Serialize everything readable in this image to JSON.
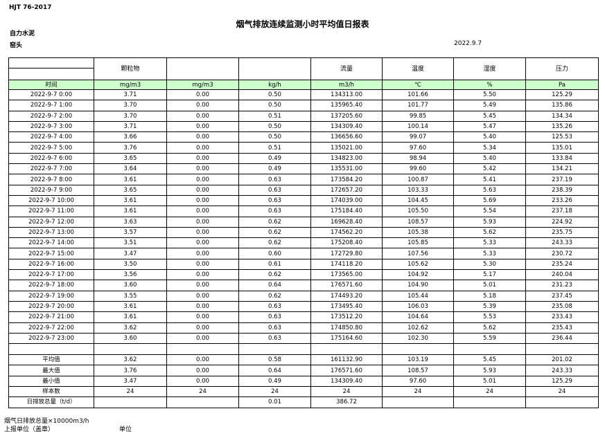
{
  "header": {
    "code": "HJT  76-2017",
    "title": "烟气排放连续监测小时平均值日报表",
    "company": "自力水泥",
    "location": "窑头",
    "date": "2022.9.7"
  },
  "table": {
    "header_row": [
      null,
      "颗粒物",
      null,
      null,
      "流量",
      "温度",
      "湿度",
      "压力"
    ],
    "units_row": [
      "时间",
      "mg/m3",
      "mg/m3",
      "kg/h",
      "m3/h",
      "℃",
      "%",
      "Pa"
    ],
    "rows": [
      [
        "2022-9-7  0:00",
        "3.71",
        "0.00",
        "0.50",
        "134313.00",
        "101.66",
        "5.50",
        "125.29"
      ],
      [
        "2022-9-7  1:00",
        "3.70",
        "0.00",
        "0.50",
        "135965.40",
        "101.77",
        "5.49",
        "135.86"
      ],
      [
        "2022-9-7  2:00",
        "3.70",
        "0.00",
        "0.51",
        "137205.60",
        "99.85",
        "5.45",
        "134.34"
      ],
      [
        "2022-9-7  3:00",
        "3.71",
        "0.00",
        "0.50",
        "134309.40",
        "100.14",
        "5.47",
        "135.26"
      ],
      [
        "2022-9-7  4:00",
        "3.66",
        "0.00",
        "0.50",
        "136656.60",
        "99.07",
        "5.40",
        "125.53"
      ],
      [
        "2022-9-7  5:00",
        "3.76",
        "0.00",
        "0.51",
        "135021.00",
        "97.60",
        "5.34",
        "135.01"
      ],
      [
        "2022-9-7  6:00",
        "3.65",
        "0.00",
        "0.49",
        "134823.00",
        "98.94",
        "5.40",
        "133.84"
      ],
      [
        "2022-9-7  7:00",
        "3.64",
        "0.00",
        "0.49",
        "135531.00",
        "99.60",
        "5.42",
        "134.21"
      ],
      [
        "2022-9-7  8:00",
        "3.61",
        "0.00",
        "0.63",
        "173584.20",
        "100.87",
        "5.41",
        "237.19"
      ],
      [
        "2022-9-7  9:00",
        "3.65",
        "0.00",
        "0.63",
        "172657.20",
        "103.33",
        "5.63",
        "238.39"
      ],
      [
        "2022-9-7  10:00",
        "3.61",
        "0.00",
        "0.63",
        "174039.00",
        "104.45",
        "5.69",
        "233.26"
      ],
      [
        "2022-9-7  11:00",
        "3.61",
        "0.00",
        "0.63",
        "175184.40",
        "105.50",
        "5.54",
        "237.18"
      ],
      [
        "2022-9-7  12:00",
        "3.63",
        "0.00",
        "0.62",
        "169628.40",
        "108.57",
        "5.93",
        "224.92"
      ],
      [
        "2022-9-7  13:00",
        "3.57",
        "0.00",
        "0.62",
        "174562.20",
        "105.38",
        "5.62",
        "235.75"
      ],
      [
        "2022-9-7  14:00",
        "3.51",
        "0.00",
        "0.62",
        "175208.40",
        "105.85",
        "5.33",
        "243.33"
      ],
      [
        "2022-9-7  15:00",
        "3.47",
        "0.00",
        "0.60",
        "172729.80",
        "107.56",
        "5.33",
        "230.72"
      ],
      [
        "2022-9-7  16:00",
        "3.50",
        "0.00",
        "0.61",
        "174118.20",
        "105.62",
        "5.30",
        "235.24"
      ],
      [
        "2022-9-7  17:00",
        "3.56",
        "0.00",
        "0.62",
        "173565.00",
        "104.92",
        "5.17",
        "240.04"
      ],
      [
        "2022-9-7  18:00",
        "3.60",
        "0.00",
        "0.64",
        "176571.60",
        "104.90",
        "5.01",
        "231.23"
      ],
      [
        "2022-9-7  19:00",
        "3.55",
        "0.00",
        "0.62",
        "174493.20",
        "105.44",
        "5.18",
        "237.45"
      ],
      [
        "2022-9-7  20:00",
        "3.61",
        "0.00",
        "0.63",
        "173495.40",
        "106.03",
        "5.39",
        "235.08"
      ],
      [
        "2022-9-7  21:00",
        "3.61",
        "0.00",
        "0.63",
        "173512.20",
        "104.64",
        "5.53",
        "233.43"
      ],
      [
        "2022-9-7  22:00",
        "3.62",
        "0.00",
        "0.63",
        "174850.80",
        "102.62",
        "5.62",
        "235.43"
      ],
      [
        "2022-9-7  23:00",
        "3.60",
        "0.00",
        "0.63",
        "175164.60",
        "102.30",
        "5.59",
        "236.44"
      ]
    ],
    "summary": [
      [
        "平均值",
        "3.62",
        "0.00",
        "0.58",
        "161132.90",
        "103.19",
        "5.45",
        "201.02"
      ],
      [
        "最大值",
        "3.76",
        "0.00",
        "0.64",
        "176571.60",
        "108.57",
        "5.93",
        "243.33"
      ],
      [
        "最小值",
        "3.47",
        "0.00",
        "0.49",
        "134309.40",
        "97.60",
        "5.01",
        "125.29"
      ],
      [
        "样本数",
        "24",
        "24",
        "24",
        "24",
        "24",
        "24",
        "24"
      ],
      [
        "日排放总量（t/d）",
        null,
        null,
        "0.01",
        "386.72",
        null,
        null,
        null
      ]
    ]
  },
  "footer": {
    "note": "烟气日排放总量×10000m3/h",
    "unit_label": "上报单位（盖章）",
    "unit": "单位"
  }
}
